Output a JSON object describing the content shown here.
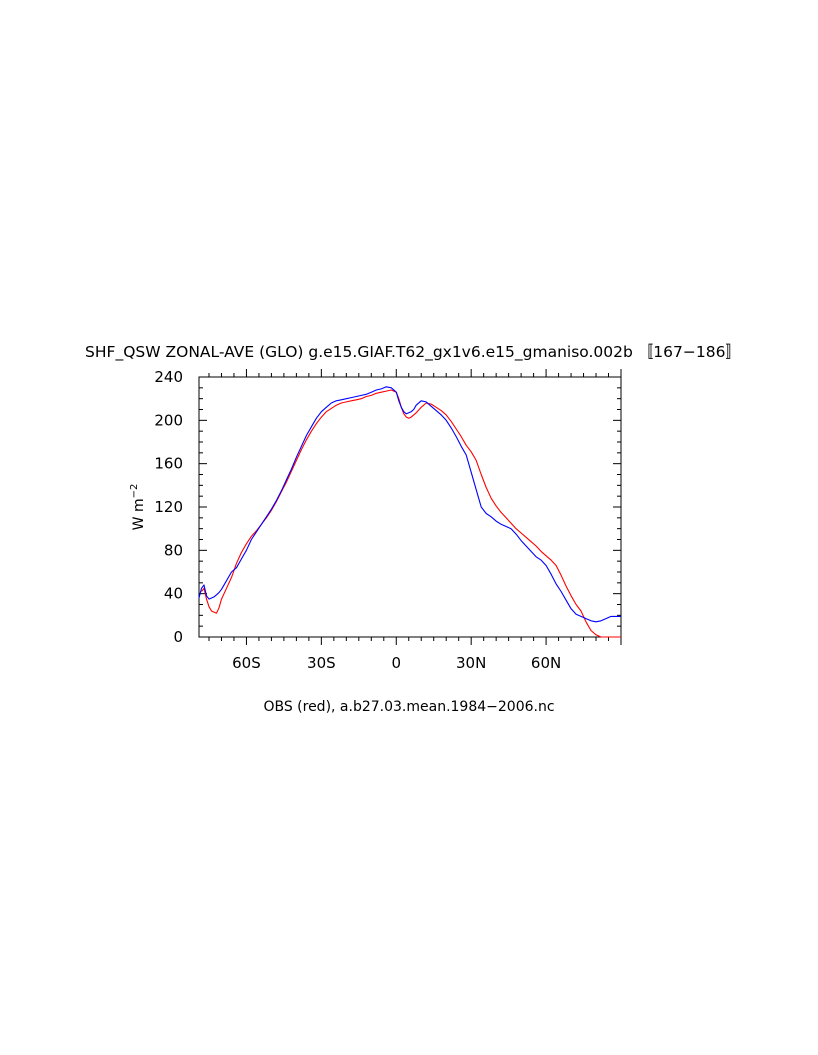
{
  "chart_data": {
    "type": "line",
    "title": "SHF_QSW ZONAL-AVE (GLO) g.e15.GIAF.T62_gx1v6.e15_gmaniso.002b 〚167−186〛",
    "subtitle": "OBS (red), a.b27.03.mean.1984−2006.nc",
    "xlabel": "",
    "ylabel": "W m",
    "ylabel_sup": "−2",
    "xlim": [
      -79,
      90
    ],
    "ylim": [
      0,
      240
    ],
    "yticks": [
      0,
      40,
      80,
      120,
      160,
      200,
      240
    ],
    "ytick_labels": [
      "0",
      "40",
      "80",
      "120",
      "160",
      "200",
      "240"
    ],
    "xticks": [
      -60,
      -30,
      0,
      30,
      60
    ],
    "xtick_labels": [
      "60S",
      "30S",
      "0",
      "30N",
      "60N"
    ],
    "grid": false,
    "series": [
      {
        "color": "#ff0000",
        "x": [
          -78,
          -77,
          -76,
          -75,
          -74,
          -73,
          -72,
          -71,
          -70,
          -68,
          -66,
          -64,
          -62,
          -60,
          -58,
          -56,
          -54,
          -52,
          -50,
          -48,
          -46,
          -44,
          -42,
          -40,
          -38,
          -36,
          -34,
          -32,
          -30,
          -28,
          -26,
          -24,
          -22,
          -20,
          -18,
          -16,
          -14,
          -12,
          -10,
          -8,
          -6,
          -4,
          -2,
          0,
          1,
          2,
          3,
          4,
          5,
          6,
          7,
          8,
          10,
          12,
          14,
          16,
          18,
          20,
          22,
          24,
          26,
          28,
          30,
          32,
          34,
          36,
          38,
          40,
          42,
          44,
          46,
          48,
          50,
          52,
          54,
          56,
          58,
          60,
          62,
          64,
          66,
          68,
          70,
          72,
          74,
          76,
          78,
          80,
          82,
          84,
          86,
          88,
          90
        ],
        "y": [
          42,
          45,
          35,
          28,
          24,
          23,
          22,
          27,
          35,
          45,
          55,
          68,
          78,
          86,
          93,
          98,
          104,
          110,
          117,
          125,
          134,
          143,
          153,
          163,
          173,
          182,
          190,
          197,
          203,
          208,
          211,
          214,
          216,
          217,
          218,
          219,
          220,
          222,
          223,
          225,
          226,
          227,
          228,
          226,
          220,
          212,
          206,
          203,
          202,
          203,
          205,
          207,
          212,
          216,
          215,
          212,
          209,
          205,
          199,
          192,
          185,
          177,
          171,
          163,
          150,
          138,
          128,
          121,
          115,
          110,
          105,
          100,
          96,
          92,
          88,
          84,
          79,
          75,
          71,
          66,
          57,
          47,
          38,
          30,
          24,
          14,
          6,
          2,
          0,
          0,
          0,
          0,
          0
        ]
      },
      {
        "color": "#0000ff",
        "x": [
          -79,
          -78,
          -77,
          -76,
          -75,
          -74,
          -73,
          -72,
          -71,
          -70,
          -68,
          -66,
          -64,
          -62,
          -60,
          -58,
          -56,
          -54,
          -52,
          -50,
          -48,
          -46,
          -44,
          -42,
          -40,
          -38,
          -36,
          -34,
          -32,
          -30,
          -28,
          -26,
          -24,
          -22,
          -20,
          -18,
          -16,
          -14,
          -12,
          -10,
          -8,
          -6,
          -4,
          -2,
          0,
          1,
          2,
          3,
          4,
          5,
          6,
          7,
          8,
          10,
          12,
          14,
          16,
          18,
          20,
          22,
          24,
          26,
          28,
          30,
          32,
          34,
          36,
          38,
          40,
          42,
          44,
          46,
          48,
          50,
          52,
          54,
          56,
          58,
          60,
          62,
          64,
          66,
          68,
          70,
          72,
          74,
          76,
          78,
          80,
          82,
          84,
          86,
          88,
          90
        ],
        "y": [
          36,
          45,
          48,
          38,
          35,
          36,
          37,
          39,
          41,
          44,
          52,
          60,
          64,
          72,
          80,
          90,
          97,
          104,
          111,
          118,
          126,
          135,
          145,
          155,
          166,
          176,
          186,
          194,
          202,
          208,
          212,
          216,
          218,
          219,
          220,
          221,
          222,
          223,
          224,
          226,
          228,
          229,
          231,
          230,
          226,
          218,
          212,
          208,
          206,
          207,
          208,
          210,
          214,
          218,
          217,
          213,
          209,
          205,
          200,
          193,
          185,
          176,
          168,
          152,
          136,
          120,
          114,
          111,
          107,
          104,
          102,
          100,
          95,
          89,
          84,
          79,
          74,
          71,
          66,
          58,
          49,
          42,
          34,
          26,
          21,
          19,
          17,
          15,
          14,
          15,
          17,
          19,
          19,
          19
        ]
      }
    ]
  }
}
